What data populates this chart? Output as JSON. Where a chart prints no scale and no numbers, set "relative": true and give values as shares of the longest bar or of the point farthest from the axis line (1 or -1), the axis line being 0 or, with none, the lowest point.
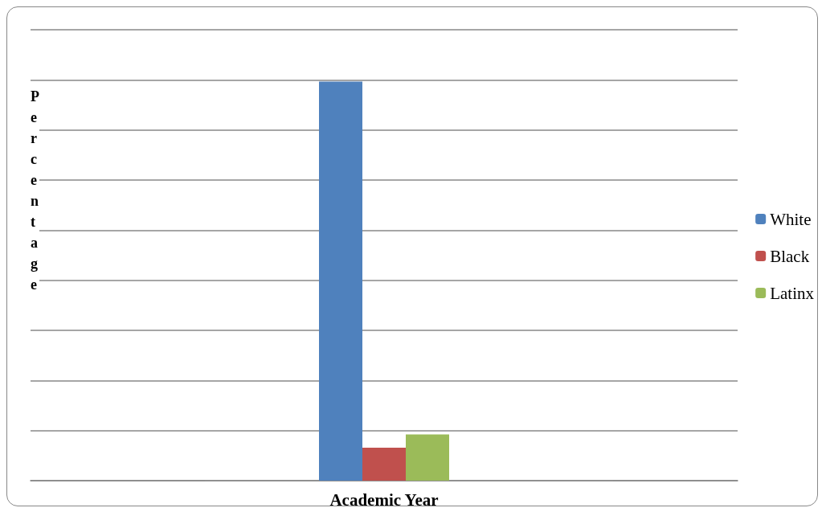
{
  "chart_data": {
    "type": "bar",
    "xlabel": "Academic Year",
    "ylabel": "Percentage",
    "categories": [
      null
    ],
    "relative": true,
    "grid": "y",
    "legend": "right",
    "series": [
      {
        "name": "White",
        "color": "#4f81bd",
        "values": [
          1
        ]
      },
      {
        "name": "Black",
        "color": "#c0504d",
        "values": [
          0.083
        ]
      },
      {
        "name": "Latinx",
        "color": "#9bbb59",
        "values": [
          0.116
        ]
      }
    ]
  }
}
